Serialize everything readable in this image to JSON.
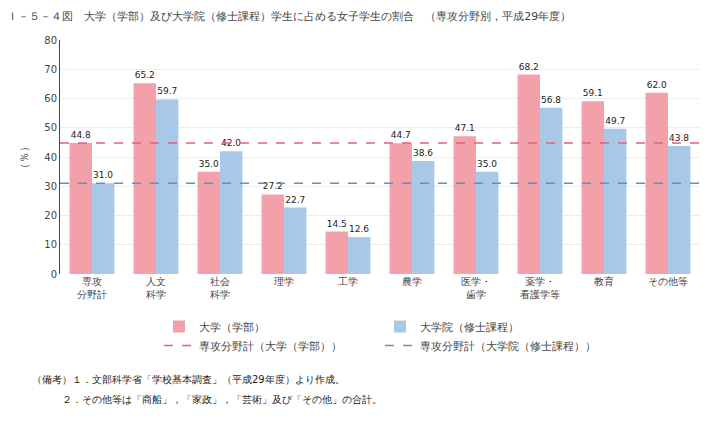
{
  "chart_data": {
    "type": "bar",
    "title": "Ｉ－５－４図　大学（学部）及び大学院（修士課程）学生に占める女子学生の割合　（専攻分野別，平成29年度）",
    "categories": [
      "専攻\n分野計",
      "人文\n科学",
      "社会\n科学",
      "理学",
      "工学",
      "農学",
      "医学・\n歯学",
      "薬学・\n看護学等",
      "教育",
      "その他等"
    ],
    "series": [
      {
        "name": "大学（学部）",
        "color": "#f2a0aa",
        "values": [
          44.8,
          65.2,
          35.0,
          27.2,
          14.5,
          44.7,
          47.1,
          68.2,
          59.1,
          62.0
        ],
        "value_labels": [
          "44.8",
          "65.2",
          "35.0",
          "27.2",
          "14.5",
          "44.7",
          "47.1",
          "68.2",
          "59.1",
          "62.0"
        ]
      },
      {
        "name": "大学院（修士課程）",
        "color": "#a8c8e8",
        "values": [
          31.0,
          59.7,
          42.0,
          22.7,
          12.6,
          38.6,
          35.0,
          56.8,
          49.7,
          43.8
        ],
        "value_labels": [
          "31.0",
          "59.7",
          "42.0",
          "22.7",
          "12.6",
          "38.6",
          "35.0",
          "56.8",
          "49.7",
          "43.8"
        ]
      }
    ],
    "reference_lines": [
      {
        "name": "専攻分野計（大学（学部））",
        "value": 44.8,
        "color": "#e06080",
        "line_style": "dashed"
      },
      {
        "name": "専攻分野計（大学院（修士課程））",
        "value": 31.0,
        "color": "#6090c0",
        "line_style": "dashed"
      }
    ],
    "ylabel": "（％）",
    "ylim": [
      0,
      80
    ],
    "yticks": [
      0,
      10,
      20,
      30,
      40,
      50,
      60,
      70,
      80
    ],
    "grid": true,
    "data_labels": true,
    "legend": "bottom",
    "annotations": [
      "（備考）１．文部科学省「学校基本調査」（平成29年度）より作成。",
      "　　　２．その他等は「商船」，「家政」，「芸術」及び「その他」の合計。"
    ]
  }
}
